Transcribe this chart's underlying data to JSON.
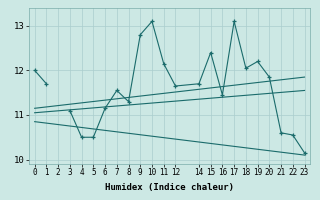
{
  "xlabel": "Humidex (Indice chaleur)",
  "x": [
    0,
    1,
    2,
    3,
    4,
    5,
    6,
    7,
    8,
    9,
    10,
    11,
    12,
    14,
    15,
    16,
    17,
    18,
    19,
    20,
    21,
    22,
    23
  ],
  "line1": [
    12.0,
    11.7,
    null,
    11.1,
    10.5,
    10.5,
    11.15,
    11.55,
    11.3,
    12.8,
    13.1,
    12.15,
    11.65,
    11.7,
    12.4,
    11.45,
    13.1,
    12.05,
    12.2,
    11.85,
    10.6,
    10.55,
    10.15
  ],
  "line2_x": [
    0,
    23
  ],
  "line2_y": [
    11.15,
    11.85
  ],
  "line3_x": [
    0,
    23
  ],
  "line3_y": [
    11.05,
    11.55
  ],
  "line4_x": [
    0,
    23
  ],
  "line4_y": [
    10.85,
    10.1
  ],
  "bg_color": "#cce8e4",
  "grid_color": "#aacece",
  "line_color": "#1a6b6b",
  "ylim": [
    9.9,
    13.4
  ],
  "xlim": [
    -0.5,
    23.5
  ],
  "yticks": [
    10,
    11,
    12,
    13
  ],
  "xticks": [
    0,
    1,
    2,
    3,
    4,
    5,
    6,
    7,
    8,
    9,
    10,
    11,
    12,
    14,
    15,
    16,
    17,
    18,
    19,
    20,
    21,
    22,
    23
  ],
  "xlabel_fontsize": 6.5,
  "tick_fontsize": 5.5,
  "ytick_fontsize": 6.5
}
